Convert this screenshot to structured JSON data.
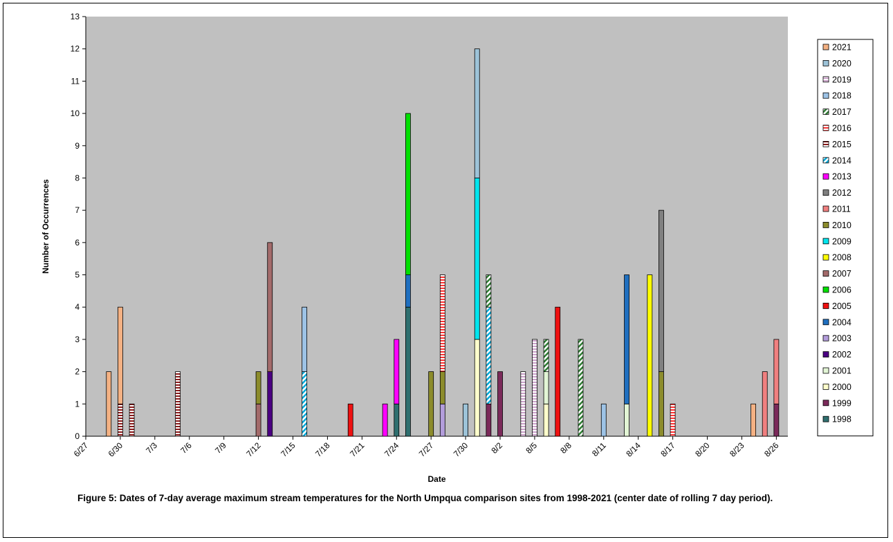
{
  "figure": {
    "caption": "Figure 5:  Dates of 7-day average maximum stream temperatures for the North Umpqua comparison sites from 1998-2021 (center date of rolling 7 day period)."
  },
  "chart_data": {
    "type": "bar",
    "stacked": true,
    "title": "",
    "xlabel": "Date",
    "ylabel": "Number of Occurrences",
    "ylim": [
      0,
      13
    ],
    "yticks": [
      0,
      1,
      2,
      3,
      4,
      5,
      6,
      7,
      8,
      9,
      10,
      11,
      12,
      13
    ],
    "x_domain": [
      "6/27",
      "8/27"
    ],
    "xticks": [
      "6/27",
      "6/30",
      "7/3",
      "7/6",
      "7/9",
      "7/12",
      "7/15",
      "7/18",
      "7/21",
      "7/24",
      "7/27",
      "7/30",
      "8/2",
      "8/5",
      "8/8",
      "8/11",
      "8/14",
      "8/17",
      "8/20",
      "8/23",
      "8/26"
    ],
    "plot_background": "#c0c0c0",
    "grid": false,
    "legend_position": "right",
    "series": [
      {
        "name": "2021",
        "color": "#f4b183",
        "pattern": "solid",
        "points": [
          {
            "date": "6/29",
            "value": 2
          },
          {
            "date": "6/30",
            "value": 3
          },
          {
            "date": "8/24",
            "value": 1
          }
        ]
      },
      {
        "name": "2020",
        "color": "#9dc3d8",
        "pattern": "solid",
        "points": [
          {
            "date": "7/30",
            "value": 1
          },
          {
            "date": "7/31",
            "value": 4
          }
        ]
      },
      {
        "name": "2019",
        "color": "#c9a0c8",
        "pattern": "hstripe",
        "points": [
          {
            "date": "8/4",
            "value": 2
          },
          {
            "date": "8/5",
            "value": 3
          }
        ]
      },
      {
        "name": "2018",
        "color": "#9dc3e6",
        "pattern": "solid",
        "points": [
          {
            "date": "7/16",
            "value": 2
          },
          {
            "date": "8/11",
            "value": 1
          }
        ]
      },
      {
        "name": "2017",
        "color": "#2e7d32",
        "pattern": "diag",
        "points": [
          {
            "date": "8/1",
            "value": 1
          },
          {
            "date": "8/6",
            "value": 1
          },
          {
            "date": "8/9",
            "value": 3
          }
        ]
      },
      {
        "name": "2016",
        "color": "#ff3333",
        "pattern": "hstripe",
        "points": [
          {
            "date": "7/28",
            "value": 3
          },
          {
            "date": "8/17",
            "value": 1
          }
        ]
      },
      {
        "name": "2015",
        "color": "#8b1a1a",
        "pattern": "hstripe",
        "points": [
          {
            "date": "6/30",
            "value": 1
          },
          {
            "date": "7/1",
            "value": 1
          },
          {
            "date": "7/5",
            "value": 2
          }
        ]
      },
      {
        "name": "2014",
        "color": "#00a8d8",
        "pattern": "diag",
        "points": [
          {
            "date": "7/16",
            "value": 2
          },
          {
            "date": "8/1",
            "value": 3
          }
        ]
      },
      {
        "name": "2013",
        "color": "#ff00ff",
        "pattern": "solid",
        "points": [
          {
            "date": "7/23",
            "value": 1
          },
          {
            "date": "7/24",
            "value": 2
          }
        ]
      },
      {
        "name": "2012",
        "color": "#808080",
        "pattern": "solid",
        "points": [
          {
            "date": "8/16",
            "value": 5
          }
        ]
      },
      {
        "name": "2011",
        "color": "#f08080",
        "pattern": "solid",
        "points": [
          {
            "date": "8/25",
            "value": 2
          },
          {
            "date": "8/26",
            "value": 2
          }
        ]
      },
      {
        "name": "2010",
        "color": "#8c8c2c",
        "pattern": "solid",
        "points": [
          {
            "date": "7/12",
            "value": 1
          },
          {
            "date": "7/27",
            "value": 2
          },
          {
            "date": "7/28",
            "value": 1
          },
          {
            "date": "8/16",
            "value": 2
          }
        ]
      },
      {
        "name": "2009",
        "color": "#00e5ee",
        "pattern": "solid",
        "points": [
          {
            "date": "7/31",
            "value": 5
          }
        ]
      },
      {
        "name": "2008",
        "color": "#ffff00",
        "pattern": "solid",
        "points": [
          {
            "date": "8/15",
            "value": 5
          }
        ]
      },
      {
        "name": "2007",
        "color": "#a36b6b",
        "pattern": "solid",
        "points": [
          {
            "date": "7/12",
            "value": 1
          },
          {
            "date": "7/13",
            "value": 4
          }
        ]
      },
      {
        "name": "2006",
        "color": "#00e000",
        "pattern": "solid",
        "points": [
          {
            "date": "7/25",
            "value": 5
          }
        ]
      },
      {
        "name": "2005",
        "color": "#ee1111",
        "pattern": "solid",
        "points": [
          {
            "date": "7/20",
            "value": 1
          },
          {
            "date": "8/7",
            "value": 4
          }
        ]
      },
      {
        "name": "2004",
        "color": "#1f6fbf",
        "pattern": "solid",
        "points": [
          {
            "date": "7/25",
            "value": 1
          },
          {
            "date": "8/13",
            "value": 4
          }
        ]
      },
      {
        "name": "2003",
        "color": "#b39ddb",
        "pattern": "solid",
        "points": [
          {
            "date": "7/28",
            "value": 1
          }
        ]
      },
      {
        "name": "2002",
        "color": "#4b0082",
        "pattern": "solid",
        "points": [
          {
            "date": "7/13",
            "value": 2
          }
        ]
      },
      {
        "name": "2001",
        "color": "#e2f5d5",
        "pattern": "solid",
        "points": [
          {
            "date": "8/6",
            "value": 1
          },
          {
            "date": "8/13",
            "value": 1
          }
        ]
      },
      {
        "name": "2000",
        "color": "#ffffcc",
        "pattern": "solid",
        "points": [
          {
            "date": "7/31",
            "value": 3
          },
          {
            "date": "8/6",
            "value": 1
          }
        ]
      },
      {
        "name": "1999",
        "color": "#7b2a5a",
        "pattern": "solid",
        "points": [
          {
            "date": "8/1",
            "value": 1
          },
          {
            "date": "8/2",
            "value": 2
          },
          {
            "date": "8/26",
            "value": 1
          }
        ]
      },
      {
        "name": "1998",
        "color": "#2f6f6f",
        "pattern": "solid",
        "points": [
          {
            "date": "7/24",
            "value": 1
          },
          {
            "date": "7/25",
            "value": 4
          }
        ]
      }
    ]
  }
}
